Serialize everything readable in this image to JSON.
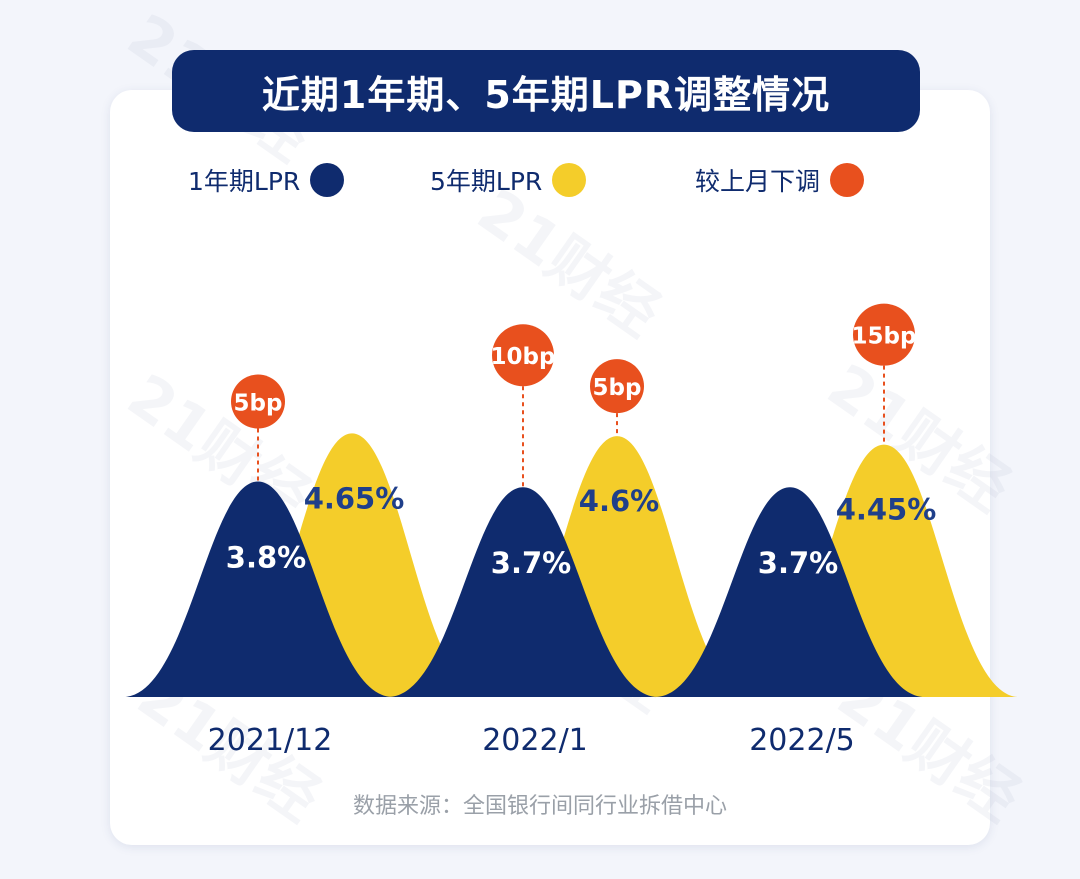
{
  "title": "近期1年期、5年期LPR调整情况",
  "legend": [
    {
      "label": "1年期LPR",
      "color": "#0f2b6e"
    },
    {
      "label": "5年期LPR",
      "color": "#f4cd2a"
    },
    {
      "label": "较上月下调",
      "color": "#e8501e"
    }
  ],
  "watermark": "21财经",
  "source": "数据来源：全国银行间同行业拆借中心",
  "chart_data": {
    "type": "area",
    "title": "近期1年期、5年期LPR调整情况",
    "categories": [
      "2021/12",
      "2022/1",
      "2022/5"
    ],
    "series": [
      {
        "name": "1年期LPR",
        "values": [
          3.8,
          3.7,
          3.7
        ],
        "labels": [
          "3.8%",
          "3.7%",
          "3.7%"
        ],
        "color": "#0f2b6e"
      },
      {
        "name": "5年期LPR",
        "values": [
          4.65,
          4.6,
          4.45
        ],
        "labels": [
          "4.65%",
          "4.6%",
          "4.45%"
        ],
        "color": "#f4cd2a"
      }
    ],
    "adjustments": [
      {
        "category": "2021/12",
        "series": "1年期LPR",
        "label": "5bp"
      },
      {
        "category": "2022/1",
        "series": "1年期LPR",
        "label": "10bp"
      },
      {
        "category": "2022/1",
        "series": "5年期LPR",
        "label": "5bp"
      },
      {
        "category": "2022/5",
        "series": "5年期LPR",
        "label": "15bp"
      }
    ],
    "adjustment_color": "#e8501e",
    "label_color": "#ffffff",
    "yellow_label_color": "#1f3f8a"
  }
}
